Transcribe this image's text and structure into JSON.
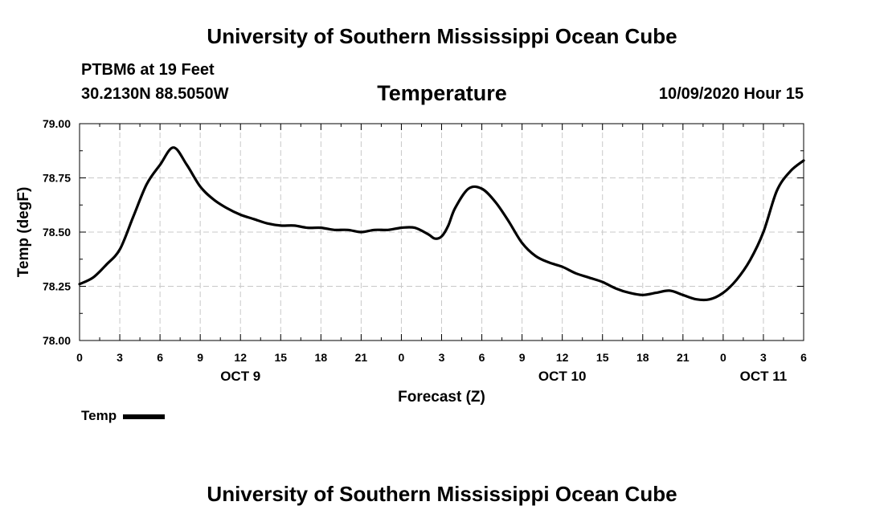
{
  "header": {
    "title": "University of Southern Mississippi Ocean Cube",
    "station": "PTBM6 at 19 Feet",
    "coordinates": "30.2130N 88.5050W",
    "timestamp": "10/09/2020 Hour 15"
  },
  "footer": {
    "title": "University of Southern Mississippi Ocean Cube"
  },
  "chart_data": {
    "type": "line",
    "title": "Temperature",
    "xlabel": "Forecast (Z)",
    "ylabel": "Temp (degF)",
    "xlim": [
      0,
      54
    ],
    "ylim": [
      78.0,
      79.0
    ],
    "yticks": [
      "78.00",
      "78.25",
      "78.50",
      "78.75",
      "79.00"
    ],
    "xtick_labels": [
      "0",
      "3",
      "6",
      "9",
      "12",
      "15",
      "18",
      "21",
      "0",
      "3",
      "6",
      "9",
      "12",
      "15",
      "18",
      "21",
      "0",
      "3",
      "6"
    ],
    "date_labels": [
      {
        "label": "OCT 9",
        "x": 12
      },
      {
        "label": "OCT 10",
        "x": 36
      },
      {
        "label": "OCT 11",
        "x": 51
      }
    ],
    "grid": true,
    "legend_position": "bottom-left",
    "series": [
      {
        "name": "Temp",
        "color": "#000000",
        "x": [
          0,
          1,
          2,
          3,
          4,
          5,
          6,
          7,
          8,
          9,
          10,
          11,
          12,
          13,
          14,
          15,
          16,
          17,
          18,
          19,
          20,
          21,
          22,
          23,
          24,
          25,
          26,
          26.5,
          27,
          27.5,
          28,
          29,
          30,
          31,
          32,
          33,
          34,
          35,
          36,
          37,
          38,
          39,
          40,
          41,
          42,
          43,
          44,
          45,
          46,
          47,
          48,
          49,
          50,
          51,
          52,
          53,
          54
        ],
        "values": [
          78.26,
          78.29,
          78.35,
          78.42,
          78.57,
          78.72,
          78.81,
          78.89,
          78.81,
          78.71,
          78.65,
          78.61,
          78.58,
          78.56,
          78.54,
          78.53,
          78.53,
          78.52,
          78.52,
          78.51,
          78.51,
          78.5,
          78.51,
          78.51,
          78.52,
          78.52,
          78.49,
          78.47,
          78.48,
          78.53,
          78.61,
          78.7,
          78.7,
          78.64,
          78.55,
          78.45,
          78.39,
          78.36,
          78.34,
          78.31,
          78.29,
          78.27,
          78.24,
          78.22,
          78.21,
          78.22,
          78.23,
          78.21,
          78.19,
          78.19,
          78.22,
          78.28,
          78.37,
          78.5,
          78.69,
          78.78,
          78.83
        ]
      }
    ]
  }
}
